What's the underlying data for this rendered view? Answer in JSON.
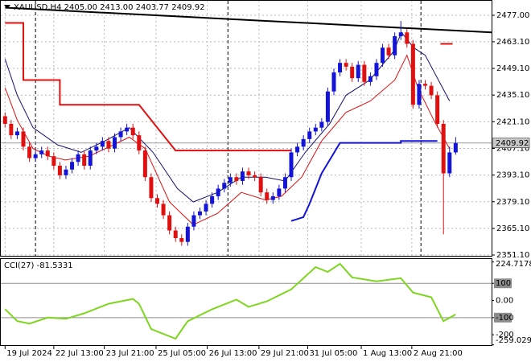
{
  "chart_data": [
    {
      "type": "candlestick",
      "title": "XAUUSD,H4  2405.00 2413.00 2403.77 2409.92",
      "open": [
        2424,
        2420,
        2414,
        2416,
        2408,
        2402,
        2404,
        2406,
        2403,
        2398,
        2393,
        2396,
        2400,
        2404,
        2398,
        2406,
        2408,
        2411,
        2407,
        2413,
        2416,
        2418,
        2414,
        2406,
        2392,
        2381,
        2378,
        2372,
        2364,
        2360,
        2358,
        2366,
        2372,
        2374,
        2378,
        2382,
        2386,
        2389,
        2392,
        2390,
        2395,
        2393,
        2392,
        2384,
        2380,
        2382,
        2386,
        2392,
        2405,
        2408,
        2412,
        2416,
        2418,
        2421,
        2437,
        2447,
        2452,
        2450,
        2444,
        2451,
        2442,
        2445,
        2452,
        2460,
        2456,
        2466,
        2468,
        2462,
        2430,
        2441,
        2440,
        2435,
        2420,
        2394,
        2405
      ],
      "high": [
        2426,
        2422,
        2418,
        2418,
        2410,
        2406,
        2408,
        2408,
        2405,
        2400,
        2398,
        2402,
        2406,
        2406,
        2408,
        2410,
        2413,
        2413,
        2415,
        2418,
        2420,
        2420,
        2416,
        2408,
        2394,
        2383,
        2380,
        2374,
        2366,
        2362,
        2368,
        2374,
        2376,
        2380,
        2384,
        2388,
        2391,
        2394,
        2394,
        2397,
        2397,
        2395,
        2394,
        2386,
        2384,
        2388,
        2394,
        2407,
        2410,
        2414,
        2418,
        2420,
        2423,
        2439,
        2449,
        2454,
        2454,
        2452,
        2453,
        2453,
        2447,
        2454,
        2462,
        2462,
        2468,
        2474,
        2470,
        2464,
        2443,
        2443,
        2442,
        2437,
        2422,
        2408,
        2413
      ],
      "low": [
        2418,
        2412,
        2412,
        2406,
        2400,
        2400,
        2402,
        2401,
        2396,
        2391,
        2391,
        2394,
        2398,
        2396,
        2396,
        2404,
        2406,
        2405,
        2405,
        2411,
        2414,
        2412,
        2404,
        2390,
        2379,
        2376,
        2370,
        2362,
        2358,
        2356,
        2356,
        2364,
        2370,
        2372,
        2376,
        2380,
        2384,
        2387,
        2388,
        2388,
        2391,
        2390,
        2382,
        2378,
        2378,
        2380,
        2384,
        2390,
        2403,
        2406,
        2410,
        2414,
        2416,
        2419,
        2435,
        2445,
        2448,
        2442,
        2442,
        2440,
        2440,
        2443,
        2450,
        2454,
        2454,
        2464,
        2460,
        2428,
        2428,
        2438,
        2433,
        2418,
        2362,
        2392,
        2403.77
      ],
      "close": [
        2420,
        2414,
        2416,
        2408,
        2402,
        2404,
        2406,
        2403,
        2398,
        2393,
        2396,
        2400,
        2404,
        2398,
        2406,
        2408,
        2411,
        2407,
        2413,
        2416,
        2418,
        2414,
        2406,
        2392,
        2381,
        2378,
        2372,
        2364,
        2360,
        2358,
        2366,
        2372,
        2374,
        2378,
        2382,
        2386,
        2389,
        2392,
        2390,
        2395,
        2393,
        2392,
        2384,
        2380,
        2382,
        2386,
        2392,
        2405,
        2408,
        2412,
        2416,
        2418,
        2421,
        2437,
        2447,
        2452,
        2450,
        2444,
        2451,
        2442,
        2445,
        2452,
        2460,
        2456,
        2466,
        2468,
        2462,
        2430,
        2441,
        2440,
        2435,
        2420,
        2394,
        2405,
        2409.92
      ],
      "up_color": "#1414d8",
      "down_color": "#e01010",
      "lines": [
        {
          "color": "#000000",
          "width": 2,
          "x": [
            0,
            80
          ],
          "values": [
            2481,
            2468
          ]
        },
        {
          "color": "#e01010",
          "width": 2,
          "x": [
            0,
            3,
            3,
            9,
            9,
            22,
            28,
            47
          ],
          "values": [
            2473,
            2473,
            2443,
            2443,
            2430,
            2430,
            2406,
            2406
          ]
        },
        {
          "color": "#1414d8",
          "width": 2,
          "x": [
            47,
            49,
            50,
            52,
            55,
            65,
            65,
            71
          ],
          "values": [
            2369,
            2371,
            2378,
            2394,
            2410,
            2410,
            2411,
            2411
          ]
        },
        {
          "color": "#e01010",
          "width": 2,
          "x": [
            71.5,
            73.5
          ],
          "values": [
            2462,
            2462
          ]
        },
        {
          "color": "#e01010",
          "width": 1,
          "x": [
            0,
            2,
            4.6,
            7.2,
            9.9,
            13.8,
            17.8,
            20.4,
            23,
            27,
            30.9,
            34.9,
            38.8,
            42.8,
            45.4,
            48.7,
            52,
            56,
            60,
            64,
            66,
            67.8,
            70.4,
            73
          ],
          "values": [
            2439,
            2422,
            2407,
            2403,
            2401,
            2403,
            2409,
            2413,
            2407,
            2379,
            2367,
            2373,
            2384,
            2380,
            2382,
            2392,
            2411,
            2426,
            2432,
            2443,
            2456,
            2439,
            2422,
            2407
          ]
        },
        {
          "color": "#101070",
          "width": 1,
          "x": [
            0,
            2,
            4.6,
            8.6,
            12.5,
            16.4,
            20.4,
            24.3,
            28.3,
            30.9,
            34.9,
            38.8,
            42.8,
            46,
            49.3,
            53.3,
            56,
            59.9,
            63.8,
            65.1,
            67.1,
            69,
            73
          ],
          "values": [
            2454,
            2435,
            2418,
            2409,
            2405,
            2411,
            2418,
            2405,
            2386,
            2379,
            2384,
            2392,
            2392,
            2390,
            2405,
            2420,
            2435,
            2443,
            2458,
            2468,
            2460,
            2456,
            2432
          ]
        }
      ],
      "xlim": [
        -0.7,
        79.9
      ],
      "ylim": [
        2350.7,
        2484.6
      ],
      "yticks": [
        {
          "value": 2477,
          "label": "2477.00"
        },
        {
          "value": 2463.1,
          "label": "2463.10"
        },
        {
          "value": 2449.1,
          "label": "2449.10"
        },
        {
          "value": 2435.1,
          "label": "2435.10"
        },
        {
          "value": 2421.1,
          "label": "2421.10"
        },
        {
          "value": 2407.1,
          "label": "2407.10"
        },
        {
          "value": 2393.1,
          "label": "2393.10"
        },
        {
          "value": 2379.1,
          "label": "2379.10"
        },
        {
          "value": 2365.1,
          "label": "2365.10"
        },
        {
          "value": 2351.1,
          "label": "2351.10"
        }
      ],
      "xticks": [
        {
          "value": 0,
          "label": "19 Jul 2024"
        },
        {
          "value": 8,
          "label": "22 Jul 13:00"
        },
        {
          "value": 16.3,
          "label": "23 Jul 21:00"
        },
        {
          "value": 24.8,
          "label": "25 Jul 05:00"
        },
        {
          "value": 33.2,
          "label": "26 Jul 13:00"
        },
        {
          "value": 41.7,
          "label": "29 Jul 21:00"
        },
        {
          "value": 49.7,
          "label": "31 Jul 05:00"
        },
        {
          "value": 58.5,
          "label": "1 Aug 13:00"
        },
        {
          "value": 66.8,
          "label": "2 Aug 21:00"
        }
      ],
      "day_separators": [
        5,
        36.6,
        68.3
      ],
      "grid": true
    },
    {
      "type": "line",
      "title": "CCI(27) -81.5331",
      "color": "#7ed61e",
      "x": [
        0,
        2,
        4,
        7,
        10,
        13,
        17,
        21,
        22,
        24,
        28,
        30,
        34,
        38,
        40,
        43,
        47,
        51,
        53,
        55,
        57,
        61,
        65,
        67,
        70,
        72,
        74
      ],
      "values": [
        -50,
        -120,
        -135,
        -100,
        -107,
        -75,
        -19,
        9,
        -19,
        -167,
        -223,
        -121,
        -51,
        5,
        -37,
        -5,
        65,
        195,
        167,
        214,
        135,
        112,
        130,
        46,
        19,
        -121,
        -81.5331
      ],
      "ylim": [
        -260.5,
        241.9
      ],
      "yticks": [
        224.7178,
        100,
        {
          "value": 0,
          "label": "0.00"
        },
        -100,
        -200,
        -259.0297
      ],
      "levels": [
        100,
        -100
      ]
    }
  ]
}
